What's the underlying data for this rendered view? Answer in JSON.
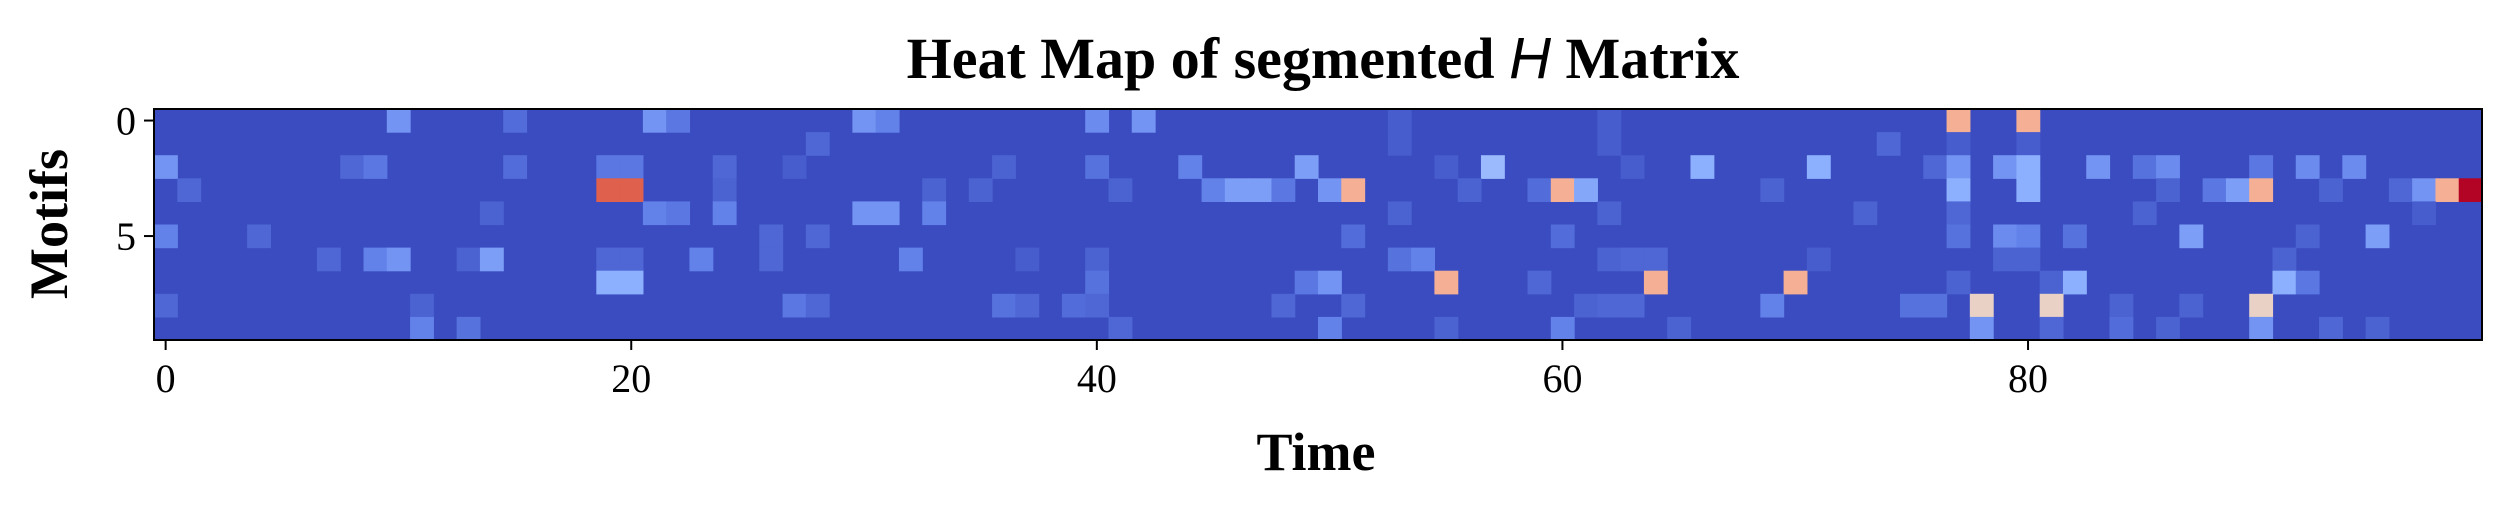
{
  "chart_data": {
    "type": "heatmap",
    "title_prefix": "Heat Map of segmented ",
    "title_variable": "H",
    "title_suffix": " Matrix",
    "xlabel": "Time",
    "ylabel": "Motifs",
    "x_ticks": [
      0,
      20,
      40,
      60,
      80
    ],
    "y_ticks": [
      0,
      5
    ],
    "n_cols": 100,
    "n_rows": 10,
    "colormap": "coolwarm",
    "value_range": [
      0,
      1
    ],
    "background_value": 0.0,
    "cells": [
      [
        0,
        10,
        0.14
      ],
      [
        0,
        15,
        0.06
      ],
      [
        0,
        21,
        0.14
      ],
      [
        0,
        22,
        0.08
      ],
      [
        0,
        30,
        0.14
      ],
      [
        0,
        31,
        0.1
      ],
      [
        0,
        40,
        0.12
      ],
      [
        0,
        42,
        0.14
      ],
      [
        0,
        53,
        0.03
      ],
      [
        0,
        62,
        0.03
      ],
      [
        0,
        77,
        0.55
      ],
      [
        0,
        80,
        0.55
      ],
      [
        1,
        28,
        0.05
      ],
      [
        1,
        53,
        0.03
      ],
      [
        1,
        62,
        0.03
      ],
      [
        1,
        74,
        0.05
      ],
      [
        1,
        77,
        0.03
      ],
      [
        1,
        80,
        0.03
      ],
      [
        2,
        0,
        0.14
      ],
      [
        2,
        8,
        0.05
      ],
      [
        2,
        9,
        0.08
      ],
      [
        2,
        15,
        0.06
      ],
      [
        2,
        19,
        0.08
      ],
      [
        2,
        20,
        0.08
      ],
      [
        2,
        24,
        0.05
      ],
      [
        2,
        27,
        0.03
      ],
      [
        2,
        36,
        0.04
      ],
      [
        2,
        40,
        0.07
      ],
      [
        2,
        44,
        0.1
      ],
      [
        2,
        49,
        0.16
      ],
      [
        2,
        55,
        0.03
      ],
      [
        2,
        57,
        0.23
      ],
      [
        2,
        63,
        0.03
      ],
      [
        2,
        66,
        0.2
      ],
      [
        2,
        71,
        0.2
      ],
      [
        2,
        76,
        0.05
      ],
      [
        2,
        77,
        0.14
      ],
      [
        2,
        79,
        0.14
      ],
      [
        2,
        80,
        0.2
      ],
      [
        2,
        83,
        0.14
      ],
      [
        2,
        85,
        0.07
      ],
      [
        2,
        86,
        0.12
      ],
      [
        2,
        90,
        0.08
      ],
      [
        2,
        92,
        0.12
      ],
      [
        2,
        94,
        0.12
      ],
      [
        3,
        1,
        0.05
      ],
      [
        3,
        19,
        0.8
      ],
      [
        3,
        20,
        0.8
      ],
      [
        3,
        24,
        0.04
      ],
      [
        3,
        33,
        0.04
      ],
      [
        3,
        35,
        0.04
      ],
      [
        3,
        41,
        0.04
      ],
      [
        3,
        45,
        0.1
      ],
      [
        3,
        46,
        0.16
      ],
      [
        3,
        47,
        0.16
      ],
      [
        3,
        48,
        0.08
      ],
      [
        3,
        50,
        0.14
      ],
      [
        3,
        51,
        0.55
      ],
      [
        3,
        56,
        0.04
      ],
      [
        3,
        59,
        0.06
      ],
      [
        3,
        60,
        0.55
      ],
      [
        3,
        61,
        0.18
      ],
      [
        3,
        69,
        0.04
      ],
      [
        3,
        77,
        0.2
      ],
      [
        3,
        80,
        0.2
      ],
      [
        3,
        86,
        0.04
      ],
      [
        3,
        88,
        0.08
      ],
      [
        3,
        89,
        0.16
      ],
      [
        3,
        90,
        0.55
      ],
      [
        3,
        93,
        0.04
      ],
      [
        3,
        96,
        0.05
      ],
      [
        3,
        97,
        0.14
      ],
      [
        3,
        98,
        0.55
      ],
      [
        3,
        99,
        1.0
      ],
      [
        4,
        14,
        0.04
      ],
      [
        4,
        21,
        0.1
      ],
      [
        4,
        22,
        0.08
      ],
      [
        4,
        24,
        0.1
      ],
      [
        4,
        30,
        0.14
      ],
      [
        4,
        31,
        0.14
      ],
      [
        4,
        33,
        0.1
      ],
      [
        4,
        53,
        0.04
      ],
      [
        4,
        62,
        0.04
      ],
      [
        4,
        73,
        0.04
      ],
      [
        4,
        77,
        0.05
      ],
      [
        4,
        85,
        0.04
      ],
      [
        4,
        97,
        0.03
      ],
      [
        5,
        0,
        0.1
      ],
      [
        5,
        4,
        0.05
      ],
      [
        5,
        26,
        0.05
      ],
      [
        5,
        28,
        0.05
      ],
      [
        5,
        51,
        0.06
      ],
      [
        5,
        60,
        0.06
      ],
      [
        5,
        77,
        0.07
      ],
      [
        5,
        79,
        0.12
      ],
      [
        5,
        80,
        0.1
      ],
      [
        5,
        82,
        0.07
      ],
      [
        5,
        87,
        0.16
      ],
      [
        5,
        92,
        0.04
      ],
      [
        5,
        95,
        0.16
      ],
      [
        6,
        7,
        0.05
      ],
      [
        6,
        9,
        0.1
      ],
      [
        6,
        10,
        0.14
      ],
      [
        6,
        13,
        0.04
      ],
      [
        6,
        14,
        0.16
      ],
      [
        6,
        19,
        0.05
      ],
      [
        6,
        20,
        0.05
      ],
      [
        6,
        23,
        0.1
      ],
      [
        6,
        26,
        0.05
      ],
      [
        6,
        32,
        0.1
      ],
      [
        6,
        37,
        0.03
      ],
      [
        6,
        40,
        0.04
      ],
      [
        6,
        53,
        0.07
      ],
      [
        6,
        54,
        0.1
      ],
      [
        6,
        62,
        0.04
      ],
      [
        6,
        63,
        0.05
      ],
      [
        6,
        64,
        0.05
      ],
      [
        6,
        71,
        0.03
      ],
      [
        6,
        79,
        0.04
      ],
      [
        6,
        80,
        0.04
      ],
      [
        6,
        91,
        0.04
      ],
      [
        7,
        19,
        0.2
      ],
      [
        7,
        20,
        0.2
      ],
      [
        7,
        40,
        0.07
      ],
      [
        7,
        49,
        0.08
      ],
      [
        7,
        50,
        0.14
      ],
      [
        7,
        55,
        0.55
      ],
      [
        7,
        59,
        0.05
      ],
      [
        7,
        64,
        0.55
      ],
      [
        7,
        70,
        0.55
      ],
      [
        7,
        77,
        0.04
      ],
      [
        7,
        81,
        0.04
      ],
      [
        7,
        82,
        0.2
      ],
      [
        7,
        91,
        0.2
      ],
      [
        7,
        92,
        0.08
      ],
      [
        8,
        0,
        0.05
      ],
      [
        8,
        11,
        0.04
      ],
      [
        8,
        27,
        0.08
      ],
      [
        8,
        28,
        0.05
      ],
      [
        8,
        36,
        0.07
      ],
      [
        8,
        37,
        0.05
      ],
      [
        8,
        39,
        0.06
      ],
      [
        8,
        40,
        0.05
      ],
      [
        8,
        48,
        0.05
      ],
      [
        8,
        51,
        0.05
      ],
      [
        8,
        61,
        0.04
      ],
      [
        8,
        62,
        0.05
      ],
      [
        8,
        63,
        0.05
      ],
      [
        8,
        69,
        0.1
      ],
      [
        8,
        75,
        0.07
      ],
      [
        8,
        76,
        0.07
      ],
      [
        8,
        78,
        0.45
      ],
      [
        8,
        81,
        0.45
      ],
      [
        8,
        84,
        0.04
      ],
      [
        8,
        87,
        0.04
      ],
      [
        8,
        90,
        0.45
      ],
      [
        9,
        11,
        0.1
      ],
      [
        9,
        13,
        0.07
      ],
      [
        9,
        41,
        0.05
      ],
      [
        9,
        50,
        0.1
      ],
      [
        9,
        55,
        0.04
      ],
      [
        9,
        60,
        0.1
      ],
      [
        9,
        65,
        0.04
      ],
      [
        9,
        78,
        0.14
      ],
      [
        9,
        81,
        0.05
      ],
      [
        9,
        84,
        0.06
      ],
      [
        9,
        86,
        0.04
      ],
      [
        9,
        90,
        0.14
      ],
      [
        9,
        93,
        0.05
      ],
      [
        9,
        95,
        0.04
      ]
    ]
  }
}
